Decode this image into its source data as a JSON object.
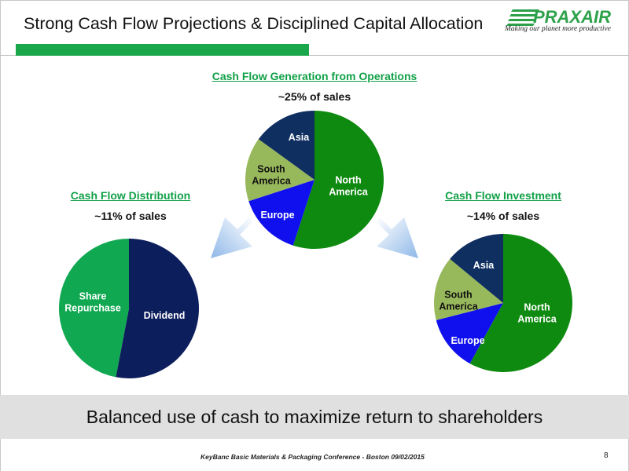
{
  "slide": {
    "title": "Strong Cash Flow Projections & Disciplined Capital Allocation",
    "logo": {
      "name": "PRAXAIR",
      "tagline": "Making our planet more productive"
    },
    "banner": "Balanced use of cash to maximize return to shareholders",
    "footer": "KeyBanc Basic Materials & Packaging Conference - Boston   09/02/2015",
    "page_number": "8"
  },
  "sections": {
    "operations": {
      "title": "Cash Flow Generation from Operations",
      "subtitle": "~25% of sales"
    },
    "distribution": {
      "title": "Cash Flow Distribution",
      "subtitle": "~11% of sales"
    },
    "investment": {
      "title": "Cash Flow Investment",
      "subtitle": "~14% of sales"
    }
  },
  "chart_data": [
    {
      "type": "pie",
      "title": "Cash Flow Generation from Operations",
      "categories": [
        "North America",
        "Europe",
        "South America",
        "Asia"
      ],
      "values": [
        55,
        15,
        15,
        15
      ],
      "colors": [
        "#0f8a10",
        "#1010ee",
        "#98b85c",
        "#0f2f60"
      ]
    },
    {
      "type": "pie",
      "title": "Cash Flow Distribution",
      "categories": [
        "Dividend",
        "Share Repurchase"
      ],
      "values": [
        53,
        47
      ],
      "colors": [
        "#0d1e5c",
        "#11a852"
      ]
    },
    {
      "type": "pie",
      "title": "Cash Flow Investment",
      "categories": [
        "North America",
        "Europe",
        "South America",
        "Asia"
      ],
      "values": [
        58,
        13,
        15,
        14
      ],
      "colors": [
        "#0f8a10",
        "#1010ee",
        "#98b85c",
        "#0f2f60"
      ]
    }
  ]
}
